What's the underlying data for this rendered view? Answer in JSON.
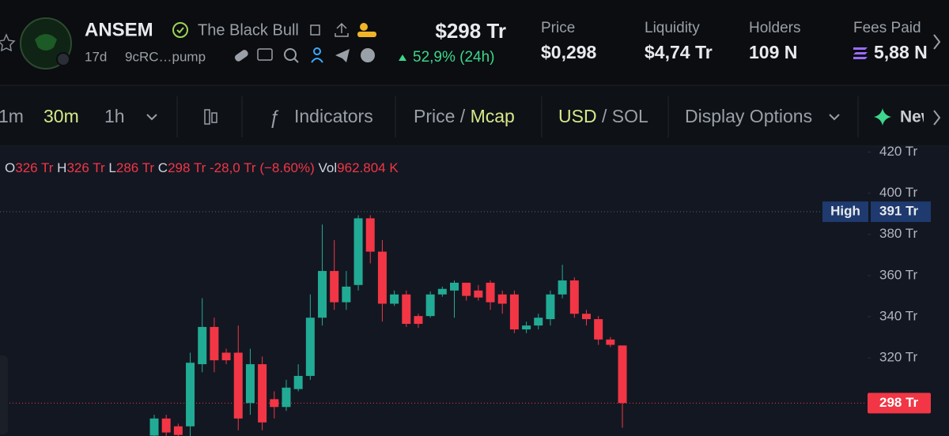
{
  "header": {
    "token": "ANSEM",
    "token_name": "The Black Bull",
    "age": "17d",
    "address": "9cRC…pump",
    "market_cap": "$298 Tr",
    "change": "52,9% (24h)",
    "stats": [
      {
        "label": "Price",
        "value": "$0,298"
      },
      {
        "label": "Liquidity",
        "value": "$4,74 Tr"
      },
      {
        "label": "Holders",
        "value": "109 N"
      },
      {
        "label": "Fees Paid",
        "value": "5,88 N"
      }
    ]
  },
  "toolbar": {
    "intervals": [
      "1m",
      "30m",
      "1h"
    ],
    "indicators": "Indicators",
    "price": "Price",
    "mcap": "Mcap",
    "usd": "USD",
    "sol": "SOL",
    "display": "Display Options",
    "new": "New"
  },
  "legend": {
    "items": [
      {
        "key": "O",
        "value": "326 Tr"
      },
      {
        "key": "H",
        "value": "326 Tr"
      },
      {
        "key": "L",
        "value": "286 Tr"
      },
      {
        "key": "C",
        "value": "298 Tr"
      }
    ],
    "change": "-28,0 Tr (−8.60%)",
    "vol_key": "Vol",
    "vol": "962.804 K"
  },
  "chart_data": {
    "type": "candlestick",
    "up_color": "#22ab94",
    "down_color": "#f23645",
    "ylim": [
      282,
      422.5
    ],
    "yticks": [
      {
        "value": 420,
        "label": "420 Tr"
      },
      {
        "value": 400,
        "label": "400 Tr"
      },
      {
        "value": 380,
        "label": "380 Tr"
      },
      {
        "value": 360,
        "label": "360 Tr"
      },
      {
        "value": 340,
        "label": "340 Tr"
      },
      {
        "value": 320,
        "label": "320 Tr"
      }
    ],
    "high_marker": {
      "label": "High",
      "price": {
        "value": 391,
        "label": "391 Tr"
      }
    },
    "last_price": {
      "value": 298,
      "label": "298 Tr"
    },
    "candles": [
      {
        "open": 282.2,
        "high": 292.3,
        "low": 282,
        "close": 290.5
      },
      {
        "open": 290.5,
        "high": 292.3,
        "low": 282,
        "close": 283.7
      },
      {
        "open": 286.7,
        "high": 288,
        "low": 282,
        "close": 282.5
      },
      {
        "open": 286.7,
        "high": 322.5,
        "low": 282,
        "close": 317.6
      },
      {
        "open": 316.9,
        "high": 349,
        "low": 313,
        "close": 335
      },
      {
        "open": 335,
        "high": 339.5,
        "low": 313,
        "close": 318.8
      },
      {
        "open": 322.5,
        "high": 324.4,
        "low": 316.9,
        "close": 318.8
      },
      {
        "open": 322.5,
        "high": 335.7,
        "low": 284.8,
        "close": 290.5
      },
      {
        "open": 298,
        "high": 324.4,
        "low": 292.3,
        "close": 316.9
      },
      {
        "open": 316.9,
        "high": 320.6,
        "low": 284.8,
        "close": 288.6
      },
      {
        "open": 299.9,
        "high": 303.7,
        "low": 290.5,
        "close": 296.1
      },
      {
        "open": 296.1,
        "high": 309.3,
        "low": 294.2,
        "close": 305.5
      },
      {
        "open": 304.8,
        "high": 316.9,
        "low": 303.7,
        "close": 311.2
      },
      {
        "open": 311.2,
        "high": 350.8,
        "low": 309.3,
        "close": 339.5
      },
      {
        "open": 339.5,
        "high": 384.8,
        "low": 335.7,
        "close": 362.2
      },
      {
        "open": 362.2,
        "high": 377.2,
        "low": 343.3,
        "close": 347
      },
      {
        "open": 347,
        "high": 362.2,
        "low": 343.3,
        "close": 354.6
      },
      {
        "open": 355.4,
        "high": 389.3,
        "low": 352.7,
        "close": 387.8
      },
      {
        "open": 387.8,
        "high": 389.3,
        "low": 365.9,
        "close": 371.6
      },
      {
        "open": 371.6,
        "high": 377.2,
        "low": 337.6,
        "close": 346.3
      },
      {
        "open": 346.3,
        "high": 352.7,
        "low": 345.2,
        "close": 350.8
      },
      {
        "open": 350.8,
        "high": 352.7,
        "low": 335,
        "close": 336.5
      },
      {
        "open": 340.3,
        "high": 341.4,
        "low": 334.6,
        "close": 336.5
      },
      {
        "open": 340.3,
        "high": 352.3,
        "low": 339.5,
        "close": 350.8
      },
      {
        "open": 350.8,
        "high": 354.6,
        "low": 349.7,
        "close": 353.5
      },
      {
        "open": 352.7,
        "high": 357.6,
        "low": 339.5,
        "close": 356.5
      },
      {
        "open": 356.5,
        "high": 356.5,
        "low": 347.8,
        "close": 350.1
      },
      {
        "open": 352.7,
        "high": 355.4,
        "low": 347.8,
        "close": 349.3
      },
      {
        "open": 356.5,
        "high": 357.6,
        "low": 343.3,
        "close": 347
      },
      {
        "open": 350.8,
        "high": 352.7,
        "low": 341.4,
        "close": 346.3
      },
      {
        "open": 350.8,
        "high": 352.7,
        "low": 332,
        "close": 333.8
      },
      {
        "open": 333.8,
        "high": 337.6,
        "low": 332,
        "close": 335.7
      },
      {
        "open": 335.7,
        "high": 341.4,
        "low": 333.8,
        "close": 339.5
      },
      {
        "open": 338.8,
        "high": 352.7,
        "low": 335.7,
        "close": 350.8
      },
      {
        "open": 350.8,
        "high": 365.2,
        "low": 348.9,
        "close": 357.6
      },
      {
        "open": 357.6,
        "high": 359.1,
        "low": 339.5,
        "close": 341.4
      },
      {
        "open": 341.4,
        "high": 343.3,
        "low": 335.7,
        "close": 338.8
      },
      {
        "open": 338.8,
        "high": 340.3,
        "low": 326.3,
        "close": 328.9
      },
      {
        "open": 328.9,
        "high": 330.1,
        "low": 325.2,
        "close": 326.3
      },
      {
        "open": 326,
        "high": 326,
        "low": 286,
        "close": 298
      }
    ]
  }
}
